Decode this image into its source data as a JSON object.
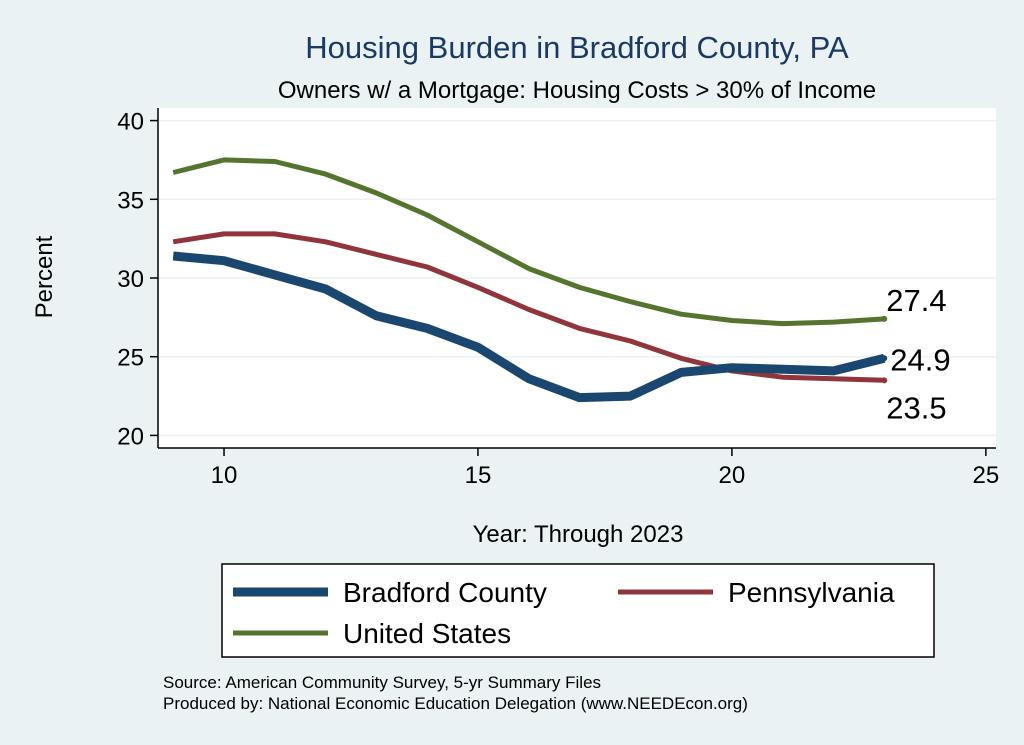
{
  "chart_data": {
    "type": "line",
    "title": "Housing Burden in Bradford County, PA",
    "subtitle": "Owners w/ a Mortgage: Housing Costs > 30% of Income",
    "xlabel": "Year: Through 2023",
    "ylabel": "Percent",
    "xlim": [
      8.7,
      25.2
    ],
    "ylim": [
      19.2,
      40.8
    ],
    "xticks": [
      10,
      15,
      20,
      25
    ],
    "yticks": [
      20,
      25,
      30,
      35,
      40
    ],
    "grid": true,
    "legend_position": "bottom",
    "x": [
      9,
      10,
      11,
      12,
      13,
      14,
      15,
      16,
      17,
      18,
      19,
      20,
      21,
      22,
      23
    ],
    "series": [
      {
        "name": "Bradford County",
        "color": "#1a476f",
        "values": [
          31.4,
          31.1,
          30.2,
          29.3,
          27.6,
          26.8,
          25.6,
          23.6,
          22.4,
          22.5,
          24.0,
          24.3,
          24.2,
          24.1,
          24.9
        ],
        "end_label": "24.9"
      },
      {
        "name": "Pennsylvania",
        "color": "#90353b",
        "values": [
          32.3,
          32.8,
          32.8,
          32.3,
          31.5,
          30.7,
          29.4,
          28.0,
          26.8,
          26.0,
          24.9,
          24.1,
          23.7,
          23.6,
          23.5
        ],
        "end_label": "23.5"
      },
      {
        "name": "United States",
        "color": "#55752f",
        "values": [
          36.7,
          37.5,
          37.4,
          36.6,
          35.4,
          34.0,
          32.3,
          30.6,
          29.4,
          28.5,
          27.7,
          27.3,
          27.1,
          27.2,
          27.4
        ],
        "end_label": "27.4"
      }
    ],
    "notes": [
      "Source: American Community Survey, 5-yr Summary Files",
      "Produced by: National Economic Education Delegation (www.NEEDEcon.org)"
    ]
  }
}
